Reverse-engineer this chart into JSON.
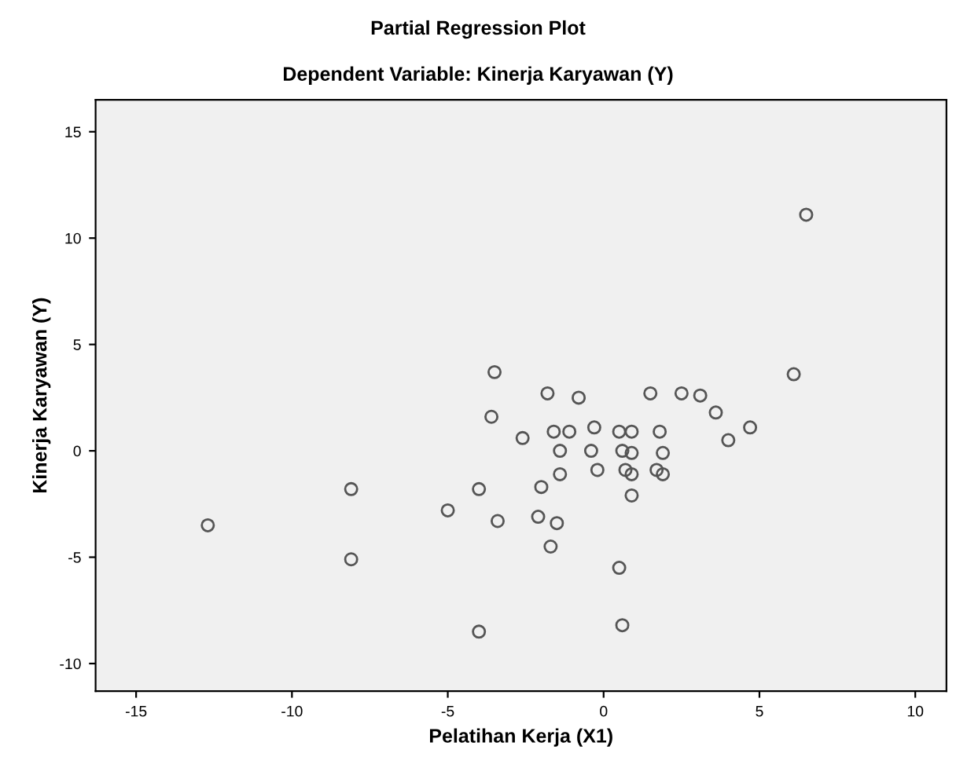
{
  "chart_data": {
    "type": "scatter",
    "title": "Partial Regression Plot",
    "subtitle": "Dependent Variable: Kinerja Karyawan (Y)",
    "xlabel": "Pelatihan Kerja (X1)",
    "ylabel": "Kinerja Karyawan (Y)",
    "xlim": [
      -16.3,
      11
    ],
    "ylim": [
      -11.3,
      16.5
    ],
    "xticks": [
      -15,
      -10,
      -5,
      0,
      5,
      10
    ],
    "yticks": [
      -10,
      -5,
      0,
      5,
      10,
      15
    ],
    "grid": false,
    "marker": "circle",
    "series": [
      {
        "color": "#555555",
        "x": [
          6.5,
          -3.5,
          -1.8,
          -0.8,
          1.5,
          2.5,
          3.1,
          6.1,
          3.6,
          -3.6,
          4.7,
          4.0,
          -2.6,
          -1.6,
          -1.1,
          -0.3,
          0.5,
          0.9,
          1.8,
          -1.4,
          -0.4,
          0.6,
          0.9,
          1.9,
          -1.4,
          -0.2,
          0.7,
          0.9,
          1.7,
          1.9,
          -2.0,
          -4.0,
          -8.1,
          0.9,
          -5.0,
          -3.4,
          -2.1,
          -1.5,
          -12.7,
          -1.7,
          -8.1,
          0.5,
          0.6,
          -4.0
        ],
        "values": [
          11.1,
          3.7,
          2.7,
          2.5,
          2.7,
          2.7,
          2.6,
          3.6,
          1.8,
          1.6,
          1.1,
          0.5,
          0.6,
          0.9,
          0.9,
          1.1,
          0.9,
          0.9,
          0.9,
          0.0,
          0.0,
          0.0,
          -0.1,
          -0.1,
          -1.1,
          -0.9,
          -0.9,
          -1.1,
          -0.9,
          -1.1,
          -1.7,
          -1.8,
          -1.8,
          -2.1,
          -2.8,
          -3.3,
          -3.1,
          -3.4,
          -3.5,
          -4.5,
          -5.1,
          -5.5,
          -8.2,
          -8.5
        ]
      }
    ]
  }
}
